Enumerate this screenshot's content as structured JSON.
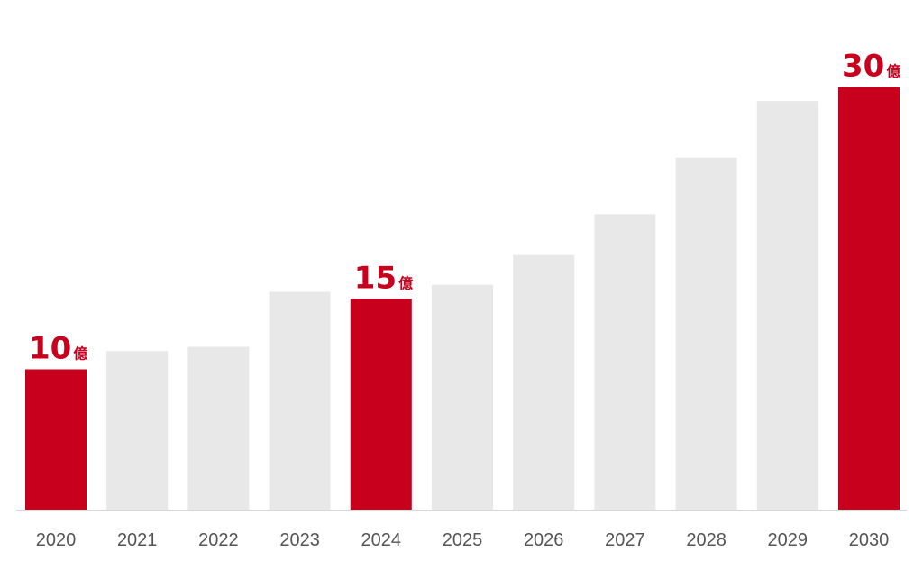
{
  "colors": {
    "highlight": "#c8001e",
    "bar": "#e8e8e8",
    "axis": "#cccccc",
    "tick_text": "#555555"
  },
  "chart_data": {
    "type": "bar",
    "title": "",
    "xlabel": "",
    "ylabel": "",
    "grid": false,
    "legend": "none",
    "ylim": [
      0,
      30
    ],
    "categories": [
      "2020",
      "2021",
      "2022",
      "2023",
      "2024",
      "2025",
      "2026",
      "2027",
      "2028",
      "2029",
      "2030"
    ],
    "values": [
      10,
      11.3,
      11.6,
      15.5,
      15,
      16,
      18.1,
      21,
      25,
      29,
      30
    ],
    "highlighted": [
      true,
      false,
      false,
      false,
      true,
      false,
      false,
      false,
      false,
      false,
      true
    ],
    "data_labels": [
      {
        "category": "2020",
        "value": "10",
        "unit": "億"
      },
      {
        "category": "2024",
        "value": "15",
        "unit": "億"
      },
      {
        "category": "2030",
        "value": "30",
        "unit": "億"
      }
    ]
  }
}
